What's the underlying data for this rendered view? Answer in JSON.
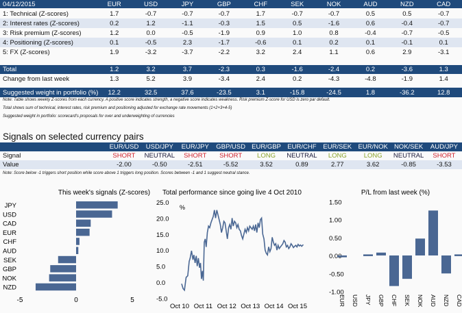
{
  "scorecard": {
    "date": "04/12/2015",
    "currencies": [
      "EUR",
      "USD",
      "JPY",
      "GBP",
      "CHF",
      "SEK",
      "NOK",
      "AUD",
      "NZD",
      "CAD"
    ],
    "rows": [
      {
        "label": "1: Technical (Z-scores)",
        "values": [
          "1.7",
          "-0.7",
          "-0.7",
          "-0.7",
          "1.7",
          "-0.7",
          "-0.7",
          "0.5",
          "0.5",
          "-0.7"
        ]
      },
      {
        "label": "2: Interest rates (Z-scores)",
        "values": [
          "0.2",
          "1.2",
          "-1.1",
          "-0.3",
          "1.5",
          "0.5",
          "-1.6",
          "0.6",
          "-0.4",
          "-0.7"
        ]
      },
      {
        "label": "3: Risk premium (Z-scores)",
        "values": [
          "1.2",
          "0.0",
          "-0.5",
          "-1.9",
          "0.9",
          "1.0",
          "0.8",
          "-0.4",
          "-0.7",
          "-0.5"
        ]
      },
      {
        "label": "4: Positioning (Z-scores)",
        "values": [
          "0.1",
          "-0.5",
          "2.3",
          "-1.7",
          "-0.6",
          "0.1",
          "0.2",
          "0.1",
          "-0.1",
          "0.1"
        ]
      },
      {
        "label": "5: FX (Z-scores)",
        "values": [
          "1.9",
          "-3.2",
          "-3.7",
          "-2.2",
          "3.2",
          "2.4",
          "1.1",
          "0.6",
          "2.9",
          "-3.1"
        ]
      }
    ],
    "total": {
      "label": "Total",
      "values": [
        "1.2",
        "3.2",
        "3.7",
        "-2.3",
        "0.3",
        "-1.6",
        "-2.4",
        "0.2",
        "-3.6",
        "1.3"
      ]
    },
    "change": {
      "label": "Change from last week",
      "values": [
        "1.3",
        "5.2",
        "3.9",
        "-3.4",
        "2.4",
        "0.2",
        "-4.3",
        "-4.8",
        "-1.9",
        "1.4"
      ]
    },
    "weight": {
      "label": "Suggested weight in portfolio (%)",
      "values": [
        "12.2",
        "32.5",
        "37.6",
        "-23.5",
        "3.1",
        "-15.8",
        "-24.5",
        "1.8",
        "-36.2",
        "12.8"
      ]
    },
    "notes": [
      "Note: Table shows weekly Z-scores from each currency. A positive score indicates strength, a negative score indicates weakness. Risk premium Z-score for USD is zero par default.",
      "Total shows sum of technical, interest rates, risk premium and positioning adjusted for exchange rate movements (1+2+3+4-5)",
      "Suggested weight in portfolio: scorecard's proposals for over and underweighting of currencies"
    ]
  },
  "signals": {
    "title": "Signals on selected currency pairs",
    "pairs": [
      "EUR/USD",
      "USD/JPY",
      "EUR/JPY",
      "GBP/USD",
      "EUR/GBP",
      "EUR/CHF",
      "EUR/SEK",
      "EUR/NOK",
      "NOK/SEK",
      "AUD/JPY"
    ],
    "signal_label": "Signal",
    "signal_values": [
      "SHORT",
      "NEUTRAL",
      "SHORT",
      "SHORT",
      "LONG",
      "NEUTRAL",
      "LONG",
      "LONG",
      "NEUTRAL",
      "SHORT"
    ],
    "value_label": "Value",
    "values": [
      "-2.00",
      "-0.50",
      "-2.51",
      "-5.52",
      "3.52",
      "0.89",
      "2.77",
      "3.62",
      "-0.85",
      "-3.53"
    ],
    "note": "Note: Score below -1 triggers short position while score above 1 triggers long position. Scores between -1 and 1 suggest neutral stance."
  },
  "colors": {
    "header": "#1f4a7c",
    "alt_row": "#dfe6f1",
    "bar": "#4a6793",
    "short": "#d0202a",
    "long": "#8aa32a"
  },
  "chart_data": [
    {
      "type": "bar",
      "orientation": "horizontal",
      "title": "This week's signals (Z-scores)",
      "categories": [
        "JPY",
        "USD",
        "CAD",
        "EUR",
        "CHF",
        "AUD",
        "SEK",
        "GBP",
        "NOK",
        "NZD"
      ],
      "values": [
        3.7,
        3.2,
        1.3,
        1.2,
        0.3,
        0.2,
        -1.6,
        -2.3,
        -2.4,
        -3.6
      ],
      "xlim": [
        -5,
        5
      ],
      "xticks": [
        "-5",
        "0",
        "5"
      ]
    },
    {
      "type": "line",
      "title": "Total performance since going live 4 Oct 2010",
      "ylabel": "%",
      "ylim": [
        -5,
        25
      ],
      "yticks": [
        "25.0",
        "20.0",
        "15.0",
        "10.0",
        "5.0",
        "0.0",
        "-5.0"
      ],
      "xticks": [
        "Oct 10",
        "Oct 11",
        "Oct 12",
        "Oct 13",
        "Oct 14",
        "Oct 15"
      ],
      "x": [
        2010.76,
        2010.82,
        2010.88,
        2010.95,
        2011.02,
        2011.08,
        2011.12,
        2011.18,
        2011.24,
        2011.28,
        2011.33,
        2011.38,
        2011.42,
        2011.47,
        2011.52,
        2011.56,
        2011.6,
        2011.64,
        2011.68,
        2011.72,
        2011.76,
        2011.8,
        2011.85,
        2011.9,
        2011.95,
        2012.0,
        2012.05,
        2012.1,
        2012.15,
        2012.2,
        2012.25,
        2012.3,
        2012.35,
        2012.4,
        2012.45,
        2012.5,
        2012.55,
        2012.6,
        2012.65,
        2012.7,
        2012.75,
        2012.8,
        2012.85,
        2012.9,
        2012.95,
        2013.0,
        2013.05,
        2013.1,
        2013.15,
        2013.2,
        2013.25,
        2013.3,
        2013.35,
        2013.4,
        2013.45,
        2013.5,
        2013.55,
        2013.6,
        2013.65,
        2013.7,
        2013.75,
        2013.8,
        2013.85,
        2013.9,
        2013.95,
        2014.0,
        2014.05,
        2014.1,
        2014.15,
        2014.2,
        2014.25,
        2014.3,
        2014.35,
        2014.4,
        2014.45,
        2014.5,
        2014.55,
        2014.6,
        2014.65,
        2014.7,
        2014.75,
        2014.8,
        2014.85,
        2014.9,
        2014.95,
        2015.0,
        2015.05,
        2015.1,
        2015.15,
        2015.2,
        2015.25,
        2015.3,
        2015.35,
        2015.4,
        2015.45,
        2015.5,
        2015.55,
        2015.6,
        2015.65,
        2015.7,
        2015.75,
        2015.8,
        2015.85,
        2015.92
      ],
      "y": [
        -0.5,
        -2.0,
        -2.5,
        1.5,
        2.0,
        6.5,
        7.5,
        9.8,
        7.0,
        8.5,
        6.0,
        8.2,
        5.0,
        7.5,
        4.5,
        6.0,
        1.0,
        3.5,
        0.5,
        12.5,
        13.5,
        11.0,
        15.5,
        17.5,
        17.0,
        18.5,
        19.5,
        20.5,
        22.5,
        20.0,
        22.5,
        21.0,
        19.5,
        18.0,
        15.5,
        17.0,
        19.0,
        18.5,
        16.0,
        13.5,
        17.0,
        18.0,
        16.5,
        20.0,
        17.5,
        19.0,
        18.5,
        17.0,
        18.0,
        16.5,
        16.0,
        14.5,
        13.5,
        15.0,
        16.5,
        15.5,
        17.0,
        16.0,
        17.5,
        17.0,
        16.5,
        17.5,
        16.0,
        18.0,
        15.5,
        18.5,
        17.0,
        19.5,
        20.0,
        15.0,
        13.5,
        10.0,
        9.0,
        8.5,
        11.0,
        9.5,
        10.5,
        14.0,
        12.5,
        11.5,
        12.0,
        10.0,
        11.5,
        10.5,
        11.0,
        11.5,
        12.0,
        13.0,
        12.5,
        11.0,
        11.5,
        10.5,
        11.0,
        12.0,
        11.5,
        10.8,
        11.2,
        11.5,
        11.0,
        11.8,
        11.3,
        11.6,
        11.2,
        11.7
      ]
    },
    {
      "type": "bar",
      "title": "P/L from last week (%)",
      "categories": [
        "EUR",
        "USD",
        "JPY",
        "GBP",
        "CHF",
        "SEK",
        "NOK",
        "AUD",
        "NZD",
        "CAD"
      ],
      "values": [
        -0.05,
        0.0,
        0.03,
        0.08,
        -0.85,
        -0.65,
        0.47,
        1.25,
        -0.5,
        0.03
      ],
      "ylim": [
        -1.0,
        1.5
      ],
      "yticks": [
        "1.50",
        "1.00",
        "0.50",
        "0.00",
        "-0.50",
        "-1.00"
      ]
    }
  ]
}
